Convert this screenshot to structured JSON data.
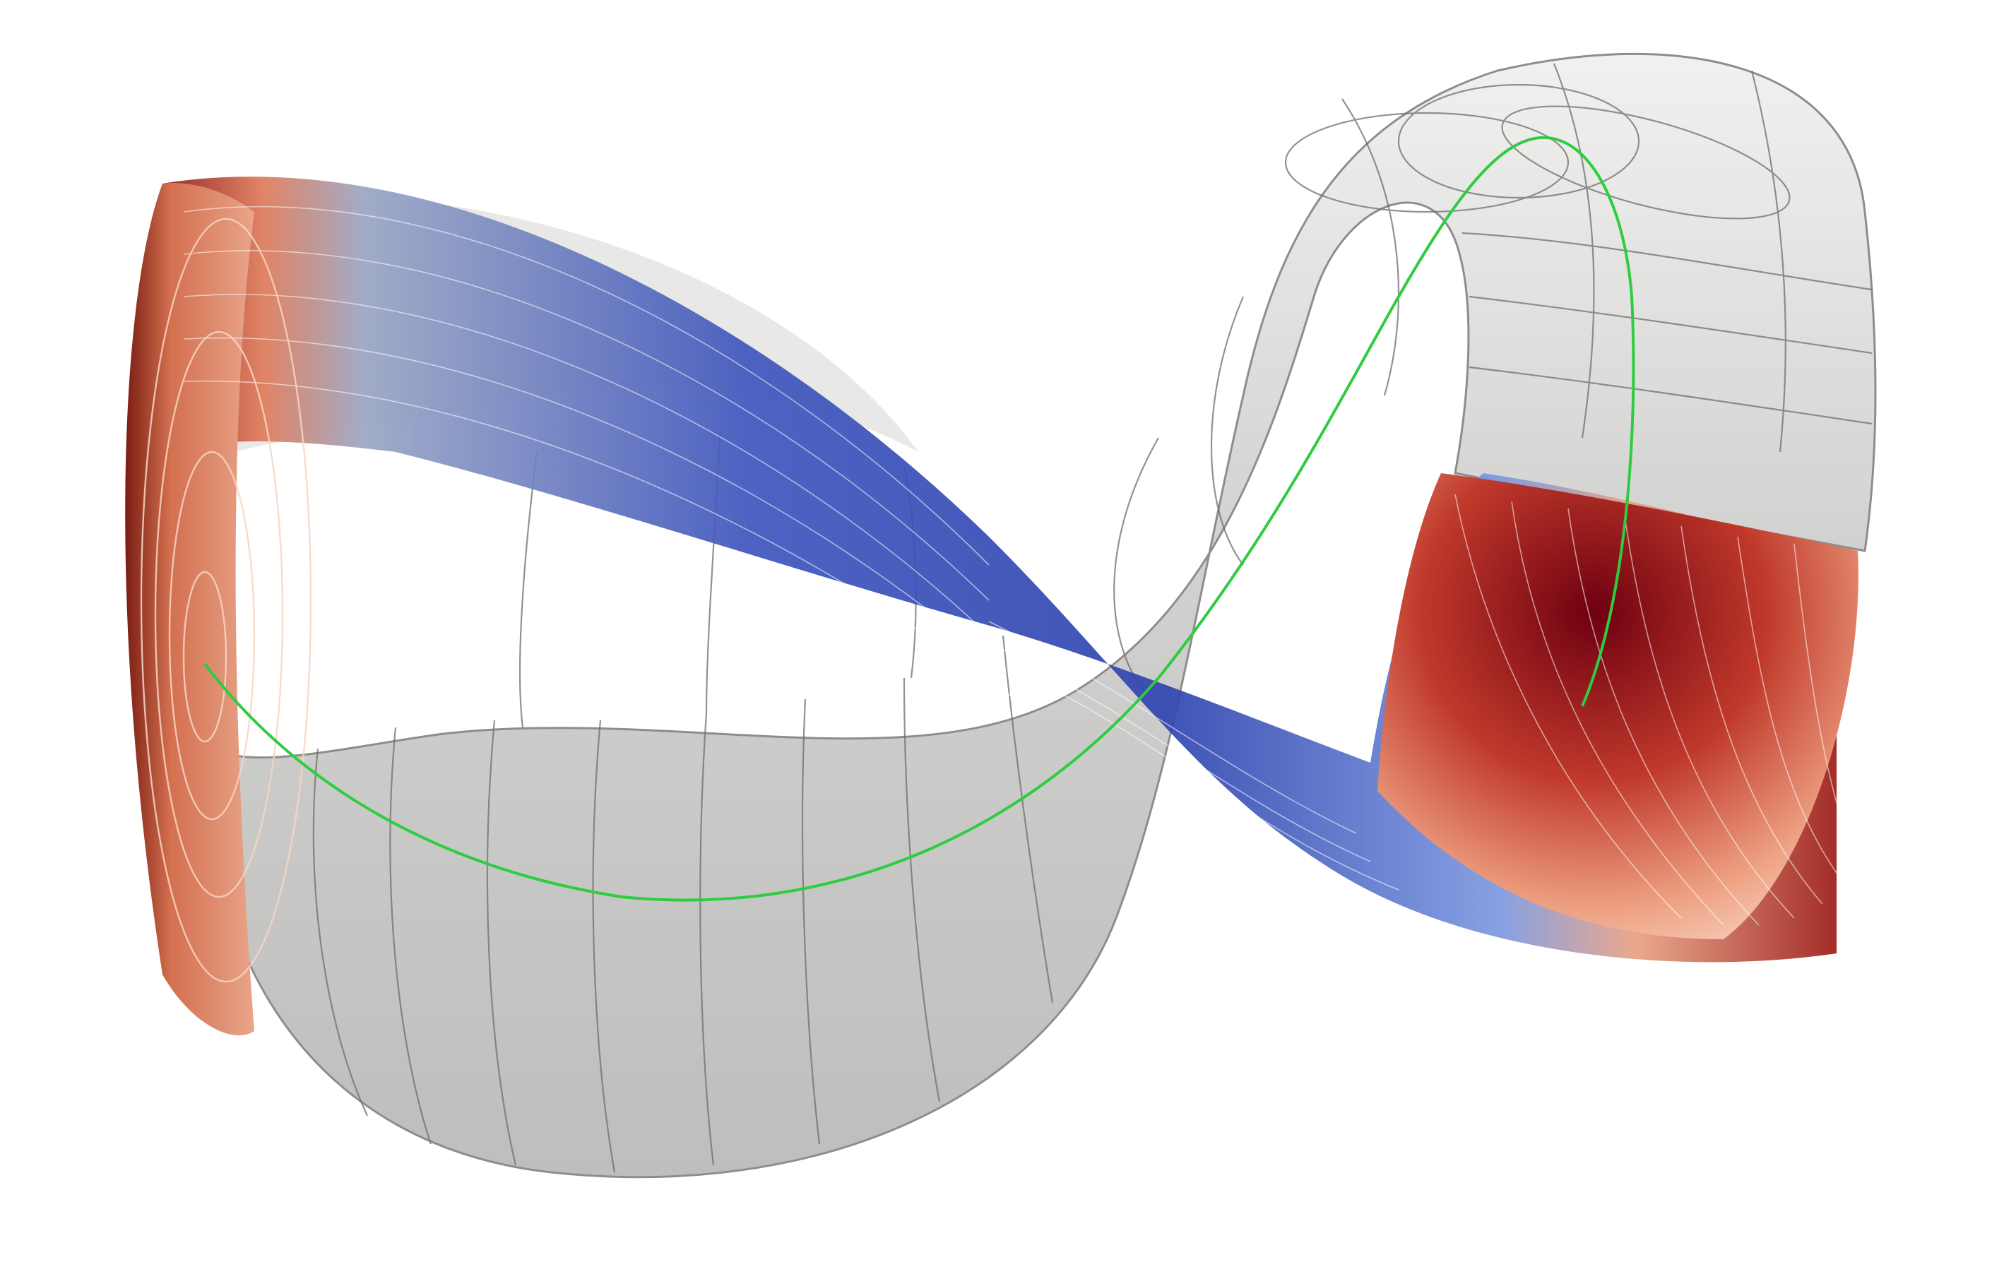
{
  "scene": {
    "background": "#ffffff",
    "colors": {
      "tube_gray": "#c4c4c2",
      "tube_gray_light": "#ececea",
      "tube_gray_dark": "#9a9a98",
      "ribbon_blue": "#3a4fb8",
      "ribbon_blue_light": "#8ea6e8",
      "ribbon_red_dark": "#7a0010",
      "ribbon_red": "#c0392b",
      "ribbon_salmon": "#f0a98a",
      "centerline_green": "#2ecc40",
      "grid_line": "#6e6e6e",
      "stripe_line": "#ffffff"
    },
    "icons": {
      "tube": "transparent-swept-tube-surface",
      "ribbon": "twisted-ribbon-surface",
      "centerline": "green-centerline-curve"
    }
  }
}
